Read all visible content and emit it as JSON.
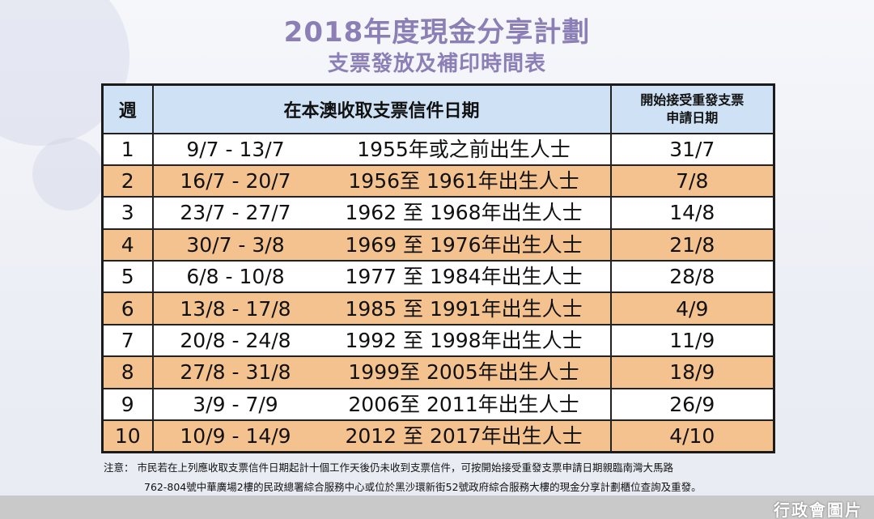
{
  "title": "2018年度現金分享計劃",
  "subtitle": "支票發放及補印時間表",
  "table": {
    "headers": {
      "week": "週",
      "collection": "在本澳收取支票信件日期",
      "reissue_line1": "開始接受重發支票",
      "reissue_line2": "申請日期"
    },
    "rows": [
      {
        "week": "1",
        "range": "9/7 - 13/7",
        "cohort": "1955年或之前出生人士",
        "reissue": "31/7"
      },
      {
        "week": "2",
        "range": "16/7 - 20/7",
        "cohort": "1956至 1961年出生人士",
        "reissue": "7/8"
      },
      {
        "week": "3",
        "range": "23/7 - 27/7",
        "cohort": "1962 至 1968年出生人士",
        "reissue": "14/8"
      },
      {
        "week": "4",
        "range": "30/7 - 3/8",
        "cohort": "1969 至 1976年出生人士",
        "reissue": "21/8"
      },
      {
        "week": "5",
        "range": "6/8 - 10/8",
        "cohort": "1977 至 1984年出生人士",
        "reissue": "28/8"
      },
      {
        "week": "6",
        "range": "13/8 - 17/8",
        "cohort": "1985 至 1991年出生人士",
        "reissue": "4/9"
      },
      {
        "week": "7",
        "range": "20/8 - 24/8",
        "cohort": "1992 至 1998年出生人士",
        "reissue": "11/9"
      },
      {
        "week": "8",
        "range": "27/8 - 31/8",
        "cohort": "1999至 2005年出生人士",
        "reissue": "18/9"
      },
      {
        "week": "9",
        "range": "3/9 - 7/9",
        "cohort": "2006至 2011年出生人士",
        "reissue": "26/9"
      },
      {
        "week": "10",
        "range": "10/9 - 14/9",
        "cohort": "2012 至 2017年出生人士",
        "reissue": "4/10"
      }
    ]
  },
  "notes": {
    "line1": "注意：  市民若在上列應收取支票信件日期起計十個工作天後仍未收到支票信件，可按開始接受重發支票申請日期親臨南灣大馬路",
    "line2": "762-804號中華廣場2樓的民政總署綜合服務中心或位於黑沙環新街52號政府綜合服務大樓的現金分享計劃櫃位查詢及重發。"
  },
  "credit": "行政會圖片",
  "colors": {
    "title": "#8c7fb6",
    "header_bg": "#cfe2f5",
    "alt_row": "#f3c28f",
    "plain_row": "#ffffff"
  }
}
